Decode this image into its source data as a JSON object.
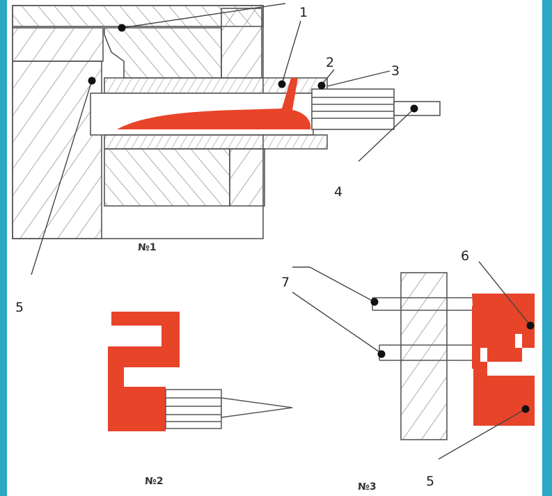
{
  "captions": {
    "fig1": "№1",
    "fig2": "№2",
    "fig3": "№3"
  },
  "labels": {
    "l1": "1",
    "l2": "2",
    "l3": "3",
    "l4": "4",
    "l5a": "5",
    "l5b": "5",
    "l6": "6",
    "l7": "7"
  },
  "colors": {
    "frame": "#2aa8c4",
    "line": "#555555",
    "hatch": "#7a7a7a",
    "fill": "#e8442a",
    "dot": "#111111"
  }
}
